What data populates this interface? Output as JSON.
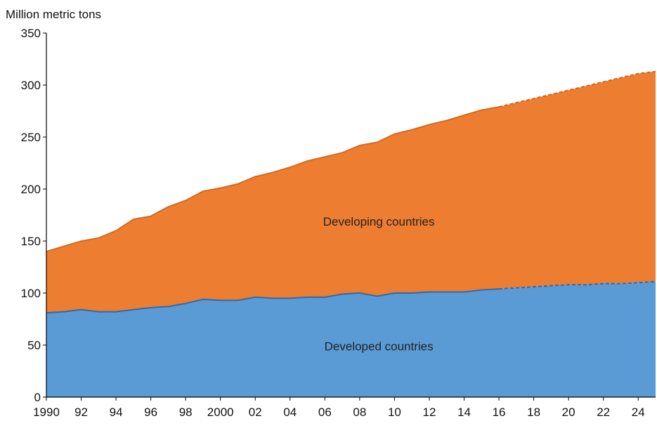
{
  "chart_data": {
    "type": "area",
    "stacked": true,
    "ylabel": "Million metric tons",
    "ylim": [
      0,
      350
    ],
    "yticks": [
      0,
      50,
      100,
      150,
      200,
      250,
      300,
      350
    ],
    "xlim": [
      1990,
      2025
    ],
    "xticks": [
      {
        "value": 1990,
        "label": "1990"
      },
      {
        "value": 1992,
        "label": "92"
      },
      {
        "value": 1994,
        "label": "94"
      },
      {
        "value": 1996,
        "label": "96"
      },
      {
        "value": 1998,
        "label": "98"
      },
      {
        "value": 2000,
        "label": "2000"
      },
      {
        "value": 2002,
        "label": "02"
      },
      {
        "value": 2004,
        "label": "04"
      },
      {
        "value": 2006,
        "label": "06"
      },
      {
        "value": 2008,
        "label": "08"
      },
      {
        "value": 2010,
        "label": "10"
      },
      {
        "value": 2012,
        "label": "12"
      },
      {
        "value": 2014,
        "label": "14"
      },
      {
        "value": 2016,
        "label": "16"
      },
      {
        "value": 2018,
        "label": "18"
      },
      {
        "value": 2020,
        "label": "20"
      },
      {
        "value": 2022,
        "label": "22"
      },
      {
        "value": 2024,
        "label": "24"
      }
    ],
    "projection_start": 2016,
    "x": [
      1990,
      1991,
      1992,
      1993,
      1994,
      1995,
      1996,
      1997,
      1998,
      1999,
      2000,
      2001,
      2002,
      2003,
      2004,
      2005,
      2006,
      2007,
      2008,
      2009,
      2010,
      2011,
      2012,
      2013,
      2014,
      2015,
      2016,
      2017,
      2018,
      2019,
      2020,
      2021,
      2022,
      2023,
      2024,
      2025
    ],
    "series": [
      {
        "name": "Developed countries",
        "color": "#5b9bd5",
        "values": [
          81,
          82,
          84,
          82,
          82,
          84,
          86,
          87,
          90,
          94,
          93,
          93,
          96,
          95,
          95,
          96,
          96,
          99,
          100,
          97,
          100,
          100,
          101,
          101,
          101,
          103,
          104,
          105,
          106,
          107,
          108,
          108,
          109,
          109,
          110,
          111
        ]
      },
      {
        "name": "Developing countries",
        "color": "#ed7d31",
        "values": [
          59,
          63,
          66,
          71,
          78,
          87,
          88,
          96,
          99,
          104,
          108,
          112,
          116,
          121,
          126,
          131,
          135,
          136,
          142,
          148,
          153,
          157,
          161,
          165,
          170,
          173,
          175,
          178,
          181,
          184,
          187,
          191,
          194,
          198,
          201,
          202
        ]
      }
    ],
    "totals": [
      140,
      145,
      150,
      153,
      160,
      171,
      174,
      183,
      189,
      198,
      201,
      205,
      212,
      216,
      221,
      227,
      231,
      235,
      242,
      245,
      253,
      257,
      262,
      266,
      271,
      276,
      279,
      283,
      287,
      291,
      295,
      299,
      303,
      307,
      311,
      313
    ]
  }
}
